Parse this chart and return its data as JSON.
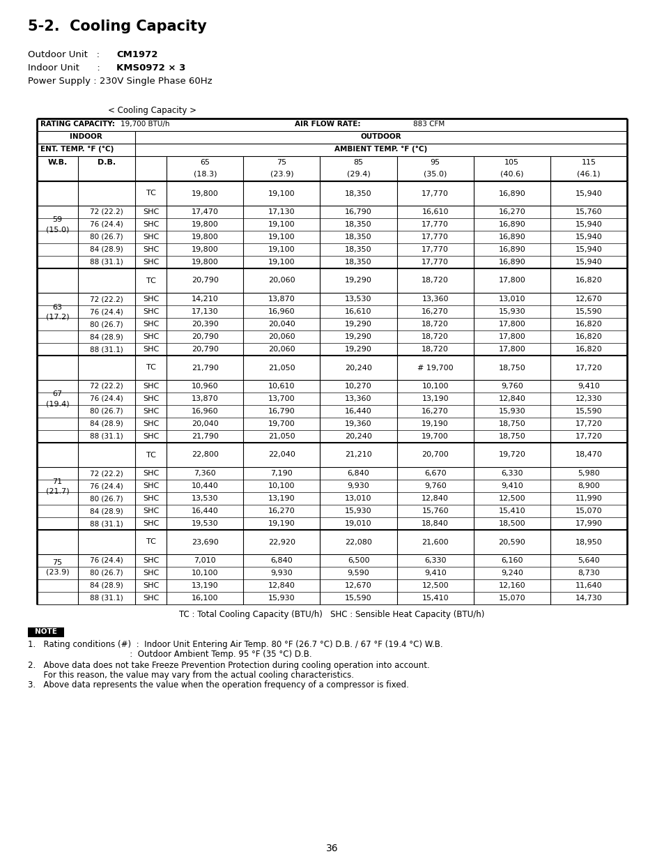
{
  "title": "5-2.  Cooling Capacity",
  "outdoor_unit_label": "Outdoor Unit",
  "outdoor_unit_val": "CM1972",
  "indoor_unit_label": "Indoor Unit",
  "indoor_unit_val": "KMS0972 × 3",
  "power_supply_label": "Power Supply :",
  "power_supply_val": "230V Single Phase 60Hz",
  "subtitle": "< Cooling Capacity >",
  "rating_capacity_label": "RATING CAPACITY:",
  "rating_capacity_val": "19,700 BTU/h",
  "air_flow_label": "AIR FLOW RATE:",
  "air_flow_val": "883 CFM",
  "col_temps": [
    "65",
    "75",
    "85",
    "95",
    "105",
    "115"
  ],
  "col_temps_c": [
    "(18.3)",
    "(23.9)",
    "(29.4)",
    "(35.0)",
    "(40.6)",
    "(46.1)"
  ],
  "wb_groups": [
    {
      "wb1": "59",
      "wb2": "(15.0)",
      "tc_row": [
        "19,800",
        "19,100",
        "18,350",
        "17,770",
        "16,890",
        "15,940"
      ],
      "shc_rows": [
        {
          "db": "72 (22.2)",
          "vals": [
            "17,470",
            "17,130",
            "16,790",
            "16,610",
            "16,270",
            "15,760"
          ]
        },
        {
          "db": "76 (24.4)",
          "vals": [
            "19,800",
            "19,100",
            "18,350",
            "17,770",
            "16,890",
            "15,940"
          ]
        },
        {
          "db": "80 (26.7)",
          "vals": [
            "19,800",
            "19,100",
            "18,350",
            "17,770",
            "16,890",
            "15,940"
          ]
        },
        {
          "db": "84 (28.9)",
          "vals": [
            "19,800",
            "19,100",
            "18,350",
            "17,770",
            "16,890",
            "15,940"
          ]
        },
        {
          "db": "88 (31.1)",
          "vals": [
            "19,800",
            "19,100",
            "18,350",
            "17,770",
            "16,890",
            "15,940"
          ]
        }
      ]
    },
    {
      "wb1": "63",
      "wb2": "(17.2)",
      "tc_row": [
        "20,790",
        "20,060",
        "19,290",
        "18,720",
        "17,800",
        "16,820"
      ],
      "shc_rows": [
        {
          "db": "72 (22.2)",
          "vals": [
            "14,210",
            "13,870",
            "13,530",
            "13,360",
            "13,010",
            "12,670"
          ]
        },
        {
          "db": "76 (24.4)",
          "vals": [
            "17,130",
            "16,960",
            "16,610",
            "16,270",
            "15,930",
            "15,590"
          ]
        },
        {
          "db": "80 (26.7)",
          "vals": [
            "20,390",
            "20,040",
            "19,290",
            "18,720",
            "17,800",
            "16,820"
          ]
        },
        {
          "db": "84 (28.9)",
          "vals": [
            "20,790",
            "20,060",
            "19,290",
            "18,720",
            "17,800",
            "16,820"
          ]
        },
        {
          "db": "88 (31.1)",
          "vals": [
            "20,790",
            "20,060",
            "19,290",
            "18,720",
            "17,800",
            "16,820"
          ]
        }
      ]
    },
    {
      "wb1": "67",
      "wb2": "(19.4)",
      "tc_row": [
        "21,790",
        "21,050",
        "20,240",
        "# 19,700",
        "18,750",
        "17,720"
      ],
      "shc_rows": [
        {
          "db": "72 (22.2)",
          "vals": [
            "10,960",
            "10,610",
            "10,270",
            "10,100",
            "9,760",
            "9,410"
          ]
        },
        {
          "db": "76 (24.4)",
          "vals": [
            "13,870",
            "13,700",
            "13,360",
            "13,190",
            "12,840",
            "12,330"
          ]
        },
        {
          "db": "80 (26.7)",
          "vals": [
            "16,960",
            "16,790",
            "16,440",
            "16,270",
            "15,930",
            "15,590"
          ]
        },
        {
          "db": "84 (28.9)",
          "vals": [
            "20,040",
            "19,700",
            "19,360",
            "19,190",
            "18,750",
            "17,720"
          ]
        },
        {
          "db": "88 (31.1)",
          "vals": [
            "21,790",
            "21,050",
            "20,240",
            "19,700",
            "18,750",
            "17,720"
          ]
        }
      ]
    },
    {
      "wb1": "71",
      "wb2": "(21.7)",
      "tc_row": [
        "22,800",
        "22,040",
        "21,210",
        "20,700",
        "19,720",
        "18,470"
      ],
      "shc_rows": [
        {
          "db": "72 (22.2)",
          "vals": [
            "7,360",
            "7,190",
            "6,840",
            "6,670",
            "6,330",
            "5,980"
          ]
        },
        {
          "db": "76 (24.4)",
          "vals": [
            "10,440",
            "10,100",
            "9,930",
            "9,760",
            "9,410",
            "8,900"
          ]
        },
        {
          "db": "80 (26.7)",
          "vals": [
            "13,530",
            "13,190",
            "13,010",
            "12,840",
            "12,500",
            "11,990"
          ]
        },
        {
          "db": "84 (28.9)",
          "vals": [
            "16,440",
            "16,270",
            "15,930",
            "15,760",
            "15,410",
            "15,070"
          ]
        },
        {
          "db": "88 (31.1)",
          "vals": [
            "19,530",
            "19,190",
            "19,010",
            "18,840",
            "18,500",
            "17,990"
          ]
        }
      ]
    },
    {
      "wb1": "75",
      "wb2": "(23.9)",
      "tc_row": [
        "23,690",
        "22,920",
        "22,080",
        "21,600",
        "20,590",
        "18,950"
      ],
      "shc_rows": [
        {
          "db": "76 (24.4)",
          "vals": [
            "7,010",
            "6,840",
            "6,500",
            "6,330",
            "6,160",
            "5,640"
          ]
        },
        {
          "db": "80 (26.7)",
          "vals": [
            "10,100",
            "9,930",
            "9,590",
            "9,410",
            "9,240",
            "8,730"
          ]
        },
        {
          "db": "84 (28.9)",
          "vals": [
            "13,190",
            "12,840",
            "12,670",
            "12,500",
            "12,160",
            "11,640"
          ]
        },
        {
          "db": "88 (31.1)",
          "vals": [
            "16,100",
            "15,930",
            "15,590",
            "15,410",
            "15,070",
            "14,730"
          ]
        }
      ]
    }
  ],
  "footnote": "TC : Total Cooling Capacity (BTU/h)   SHC : Sensible Heat Capacity (BTU/h)",
  "note_line1": "1.   Rating conditions (#)  :  Indoor Unit Entering Air Temp. 80 °F (26.7 °C) D.B. / 67 °F (19.4 °C) W.B.",
  "note_line2": "                                       :  Outdoor Ambient Temp. 95 °F (35 °C) D.B.",
  "note_line3": "2.   Above data does not take Freeze Prevention Protection during cooling operation into account.",
  "note_line4": "      For this reason, the value may vary from the actual cooling characteristics.",
  "note_line5": "3.   Above data represents the value when the operation frequency of a compressor is fixed.",
  "page_number": "36"
}
